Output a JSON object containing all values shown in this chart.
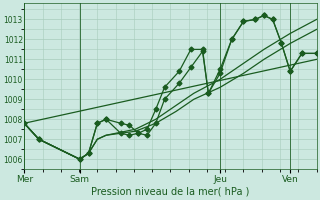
{
  "title": "Pression niveau de la mer( hPa )",
  "bg_color": "#cce8e0",
  "line_color": "#1a5c20",
  "grid_color": "#a8ccbc",
  "tick_color": "#1a5c20",
  "ylim": [
    1005.5,
    1013.8
  ],
  "yticks": [
    1006,
    1007,
    1008,
    1009,
    1010,
    1011,
    1012,
    1013
  ],
  "xlim": [
    0,
    100
  ],
  "day_positions": [
    0,
    19,
    67,
    91
  ],
  "day_labels": [
    "Mer",
    "Sam",
    "Jeu",
    "Ven"
  ],
  "series": [
    {
      "x": [
        0,
        5,
        19,
        22,
        25,
        28,
        33,
        36,
        39,
        42,
        45,
        48,
        53,
        57,
        61,
        63,
        67,
        71,
        75,
        79,
        82,
        85,
        88,
        91,
        95,
        100
      ],
      "y": [
        1007.8,
        1007.0,
        1006.0,
        1006.3,
        1007.8,
        1008.0,
        1007.8,
        1007.7,
        1007.3,
        1007.5,
        1008.5,
        1009.6,
        1010.4,
        1011.5,
        1011.5,
        1009.3,
        1010.5,
        1012.0,
        1012.9,
        1013.0,
        1013.2,
        1013.0,
        1011.8,
        1010.4,
        1011.3,
        1011.3
      ],
      "markers": true
    },
    {
      "x": [
        0,
        5,
        19,
        22,
        25,
        28,
        33,
        36,
        39,
        42,
        45,
        48,
        53,
        57,
        61,
        63,
        67,
        71,
        75,
        79,
        82,
        85,
        88,
        91,
        95,
        100
      ],
      "y": [
        1007.8,
        1007.0,
        1006.0,
        1006.3,
        1007.8,
        1008.0,
        1007.3,
        1007.2,
        1007.3,
        1007.2,
        1007.8,
        1009.0,
        1009.8,
        1010.6,
        1011.4,
        1009.3,
        1010.3,
        1012.0,
        1012.9,
        1013.0,
        1013.2,
        1013.0,
        1011.8,
        1010.4,
        1011.3,
        1011.3
      ],
      "markers": true
    },
    {
      "x": [
        0,
        100
      ],
      "y": [
        1007.8,
        1011.0
      ],
      "markers": false
    },
    {
      "x": [
        0,
        5,
        19,
        22,
        25,
        28,
        38,
        45,
        52,
        58,
        67,
        75,
        82,
        91,
        100
      ],
      "y": [
        1007.8,
        1007.0,
        1006.0,
        1006.3,
        1007.0,
        1007.2,
        1007.5,
        1008.0,
        1008.7,
        1009.3,
        1010.0,
        1010.8,
        1011.5,
        1012.3,
        1013.0
      ],
      "markers": false
    },
    {
      "x": [
        0,
        5,
        19,
        22,
        25,
        28,
        38,
        45,
        52,
        58,
        67,
        75,
        82,
        91,
        100
      ],
      "y": [
        1007.8,
        1007.0,
        1006.0,
        1006.3,
        1007.0,
        1007.2,
        1007.4,
        1007.8,
        1008.4,
        1009.0,
        1009.6,
        1010.3,
        1011.0,
        1011.8,
        1012.5
      ],
      "markers": false
    }
  ]
}
